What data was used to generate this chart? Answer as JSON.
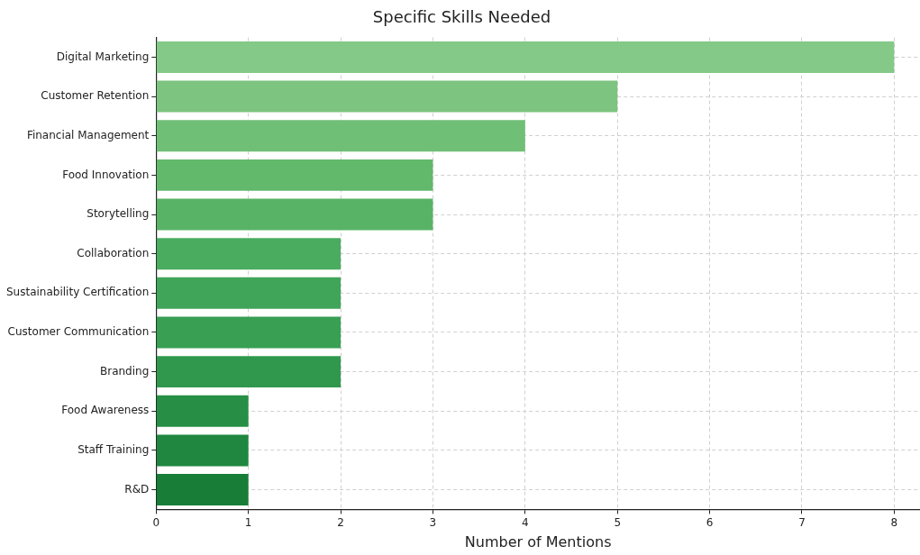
{
  "chart_data": {
    "type": "bar",
    "orientation": "horizontal",
    "title": "Specific Skills Needed",
    "xlabel": "Number of Mentions",
    "categories": [
      "Digital Marketing",
      "Customer Retention",
      "Financial Management",
      "Food Innovation",
      "Storytelling",
      "Collaboration",
      "Sustainability Certification",
      "Customer Communication",
      "Branding",
      "Food Awareness",
      "Staff Training",
      "R&D"
    ],
    "values": [
      8,
      5,
      4,
      3,
      3,
      2,
      2,
      2,
      2,
      1,
      1,
      1
    ],
    "colors": [
      "#84c988",
      "#7cc47f",
      "#70bf76",
      "#62b86b",
      "#58b366",
      "#4aac5f",
      "#40a559",
      "#389f53",
      "#30984d",
      "#268f45",
      "#1f873f",
      "#177d37"
    ],
    "xlim": [
      0,
      8.28
    ],
    "xticks": [
      0,
      1,
      2,
      3,
      4,
      5,
      6,
      7,
      8
    ],
    "grid": true,
    "legend": false
  }
}
